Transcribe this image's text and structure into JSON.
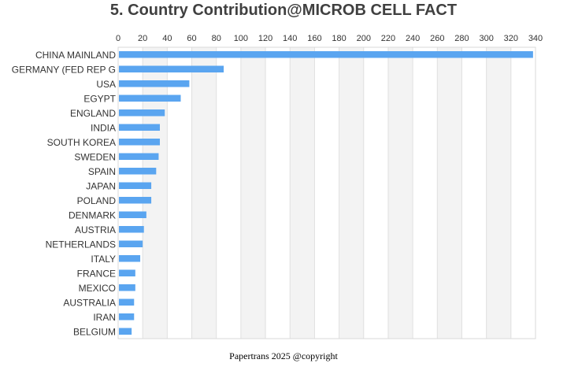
{
  "colors": {
    "bar": "#5aa5f0",
    "band": "#f3f3f3",
    "grid": "#e0e0e0",
    "border": "#d9d9d9"
  },
  "chart_data": {
    "type": "bar",
    "orientation": "horizontal",
    "title": "5. Country Contribution@MICROB CELL FACT",
    "xlabel": "",
    "ylabel": "",
    "xlim": [
      0,
      340
    ],
    "xticks": [
      0,
      20,
      40,
      60,
      80,
      100,
      120,
      140,
      160,
      180,
      200,
      220,
      240,
      260,
      280,
      300,
      320,
      340
    ],
    "x_axis_position": "top",
    "grid": true,
    "categories": [
      "CHINA MAINLAND",
      "GERMANY (FED REP G",
      "USA",
      "EGYPT",
      "ENGLAND",
      "INDIA",
      "SOUTH KOREA",
      "SWEDEN",
      "SPAIN",
      "JAPAN",
      "POLAND",
      "DENMARK",
      "AUSTRIA",
      "NETHERLANDS",
      "ITALY",
      "FRANCE",
      "MEXICO",
      "AUSTRALIA",
      "IRAN",
      "BELGIUM"
    ],
    "values": [
      338,
      86,
      58,
      51,
      38,
      34,
      34,
      33,
      31,
      27,
      27,
      23,
      21,
      20,
      18,
      14,
      14,
      13,
      13,
      11
    ]
  },
  "footer": "Papertrans 2025 @copyright"
}
